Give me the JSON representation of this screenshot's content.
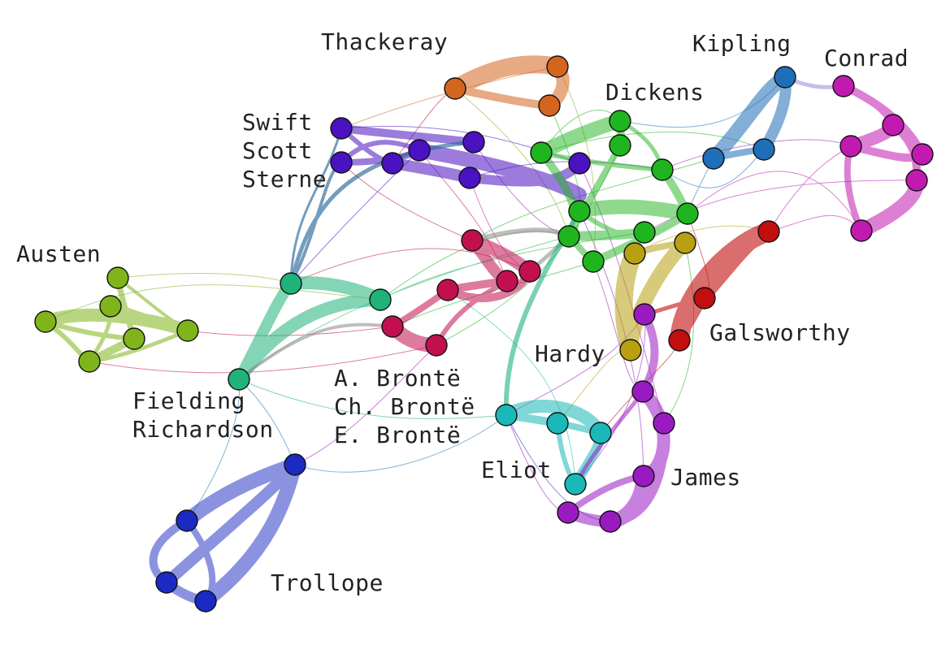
{
  "labels": {
    "thackeray": "Thackeray",
    "kipling": "Kipling",
    "conrad": "Conrad",
    "dickens": "Dickens",
    "swift": "Swift",
    "scott": "Scott",
    "sterne": "Sterne",
    "austen": "Austen",
    "fielding": "Fielding",
    "richardson": "Richardson",
    "a_bronte": "A. Brontë",
    "ch_bronte": "Ch. Brontë",
    "e_bronte": "E. Brontë",
    "hardy": "Hardy",
    "galsworthy": "Galsworthy",
    "eliot": "Eliot",
    "james": "James",
    "trollope": "Trollope"
  },
  "colors": {
    "thackeray": "#d4651f",
    "kipling": "#1f6fb8",
    "conrad": "#c21ab0",
    "dickens": "#1fb51f",
    "swift_scott_sterne": "#4a12c0",
    "austen": "#7fb51a",
    "fielding_richardson": "#1fb37a",
    "brontes": "#c2104f",
    "hardy": "#b8a010",
    "galsworthy": "#c20e0e",
    "eliot": "#1ab8b8",
    "james": "#9a1ac2",
    "trollope": "#1a2ac2"
  }
}
